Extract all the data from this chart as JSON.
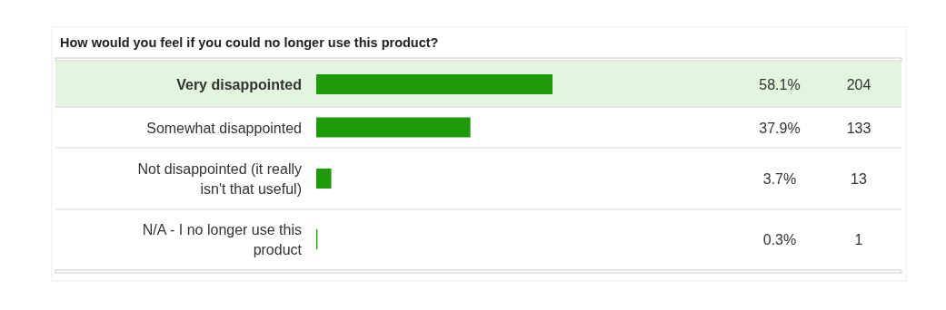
{
  "chart_data": {
    "type": "bar",
    "orientation": "horizontal",
    "title": "How would you feel if you could no longer use this product?",
    "categories": [
      "Very disappointed",
      "Somewhat disappointed",
      "Not disappointed (it really isn't that useful)",
      "N/A - I no longer use this product"
    ],
    "values": [
      58.1,
      37.9,
      3.7,
      0.3
    ],
    "value_labels": [
      "58.1%",
      "37.9%",
      "3.7%",
      "0.3%"
    ],
    "annotations": [
      "204",
      "133",
      "13",
      "1"
    ],
    "color": "#1f9a0b",
    "bands": [
      {
        "axis": "y",
        "from": "Very disappointed",
        "to": "Very disappointed",
        "color": "#e3f4df"
      }
    ]
  }
}
